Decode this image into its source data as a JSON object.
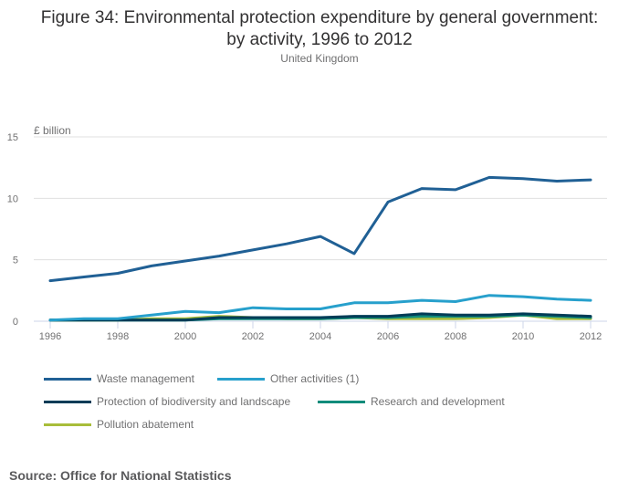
{
  "chart_data": {
    "type": "line",
    "title": "Figure 34: Environmental protection expenditure by general government: by activity, 1996 to 2012",
    "title_line1": "Figure 34: Environmental protection expenditure by general government:",
    "title_line2": "by activity, 1996 to 2012",
    "subtitle": "United Kingdom",
    "xlabel": "",
    "ylabel": "£ billion",
    "ylim": [
      0,
      15
    ],
    "yticks": [
      0,
      5,
      10,
      15
    ],
    "xticks": [
      1996,
      1998,
      2000,
      2002,
      2004,
      2006,
      2008,
      2010,
      2012
    ],
    "x": [
      1996,
      1997,
      1998,
      1999,
      2000,
      2001,
      2002,
      2003,
      2004,
      2005,
      2006,
      2007,
      2008,
      2009,
      2010,
      2011,
      2012
    ],
    "grid": true,
    "legend_position": "bottom",
    "series": [
      {
        "name": "Waste management",
        "color": "#206095",
        "values": [
          3.3,
          3.6,
          3.9,
          4.5,
          4.9,
          5.3,
          5.8,
          6.3,
          6.9,
          5.5,
          9.7,
          10.8,
          10.7,
          11.7,
          11.6,
          11.4,
          11.5
        ]
      },
      {
        "name": "Other activities (1)",
        "color": "#27a0cc",
        "values": [
          0.1,
          0.2,
          0.2,
          0.5,
          0.8,
          0.7,
          1.1,
          1.0,
          1.0,
          1.5,
          1.5,
          1.7,
          1.6,
          2.1,
          2.0,
          1.8,
          1.7
        ]
      },
      {
        "name": "Protection of biodiversity and landscape",
        "color": "#003c57",
        "values": [
          0.1,
          0.1,
          0.1,
          0.1,
          0.1,
          0.3,
          0.3,
          0.3,
          0.3,
          0.4,
          0.4,
          0.6,
          0.5,
          0.5,
          0.6,
          0.5,
          0.4
        ]
      },
      {
        "name": "Research and development",
        "color": "#118c7b",
        "values": [
          0.1,
          0.1,
          0.1,
          0.1,
          0.1,
          0.2,
          0.2,
          0.2,
          0.2,
          0.3,
          0.3,
          0.4,
          0.4,
          0.4,
          0.5,
          0.4,
          0.3
        ]
      },
      {
        "name": "Pollution abatement",
        "color": "#a8bd3a",
        "values": [
          0.1,
          0.1,
          0.1,
          0.2,
          0.2,
          0.4,
          0.3,
          0.2,
          0.2,
          0.3,
          0.2,
          0.2,
          0.2,
          0.3,
          0.5,
          0.2,
          0.2
        ]
      }
    ],
    "source": "Source: Office for National Statistics"
  }
}
